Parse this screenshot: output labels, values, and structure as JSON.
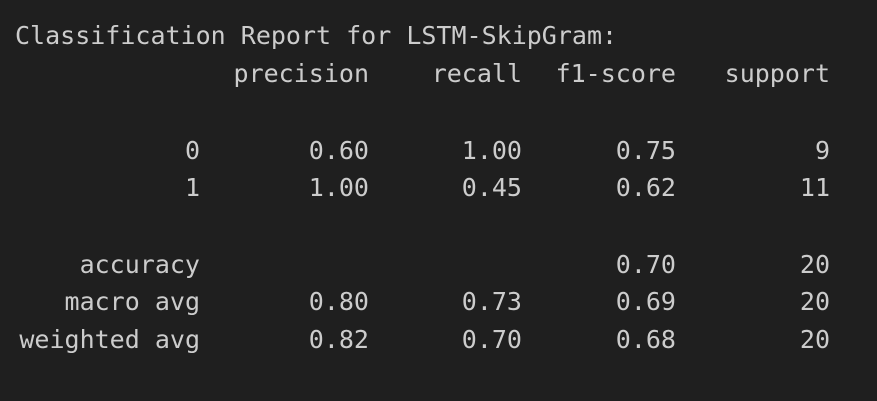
{
  "report": {
    "title": "Classification Report for LSTM-SkipGram:",
    "headers": {
      "precision": "precision",
      "recall": "recall",
      "f1_score": "f1-score",
      "support": "support"
    },
    "rows": [
      {
        "label": "0",
        "precision": "0.60",
        "recall": "1.00",
        "f1_score": "0.75",
        "support": "9"
      },
      {
        "label": "1",
        "precision": "1.00",
        "recall": "0.45",
        "f1_score": "0.62",
        "support": "11"
      }
    ],
    "accuracy": {
      "label": "accuracy",
      "f1_score": "0.70",
      "support": "20"
    },
    "macro_avg": {
      "label": "macro avg",
      "precision": "0.80",
      "recall": "0.73",
      "f1_score": "0.69",
      "support": "20"
    },
    "weighted_avg": {
      "label": "weighted avg",
      "precision": "0.82",
      "recall": "0.70",
      "f1_score": "0.68",
      "support": "20"
    }
  }
}
